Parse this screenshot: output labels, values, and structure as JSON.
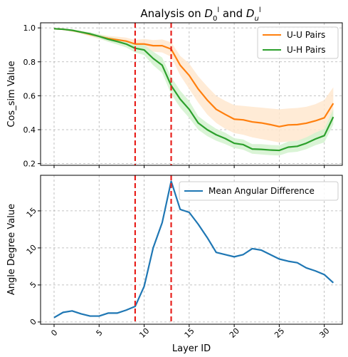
{
  "colors": {
    "uu": "#ff7f0e",
    "uh": "#2ca02c",
    "mad": "#1f77b4",
    "vline": "#e8211d",
    "uu_band": "#ffe7cf",
    "uh_band": "#d4f2cf"
  },
  "chart_data": [
    {
      "type": "line",
      "title_prefix": "Analysis on ",
      "title_mid": " and ",
      "ylabel": "Cos_sim Value",
      "xlabel": "",
      "xlim": [
        -1.5,
        32
      ],
      "ylim": [
        0.19,
        1.03
      ],
      "yticks": [
        0.2,
        0.4,
        0.6,
        0.8,
        1.0
      ],
      "ytick_labels": [
        "0.2",
        "0.4",
        "0.6",
        "0.8",
        "1.0"
      ],
      "xticks": [
        0,
        5,
        10,
        15,
        20,
        25,
        30
      ],
      "grid": true,
      "legend_position": "top-right",
      "vlines": [
        9,
        13
      ],
      "x": [
        0,
        1,
        2,
        3,
        4,
        5,
        6,
        7,
        8,
        9,
        10,
        11,
        12,
        13,
        14,
        15,
        16,
        17,
        18,
        19,
        20,
        21,
        22,
        23,
        24,
        25,
        26,
        27,
        28,
        29,
        30,
        31
      ],
      "series": [
        {
          "name": "U-U Pairs",
          "values": [
            0.995,
            0.992,
            0.985,
            0.975,
            0.962,
            0.95,
            0.938,
            0.93,
            0.922,
            0.905,
            0.905,
            0.895,
            0.895,
            0.875,
            0.78,
            0.72,
            0.64,
            0.575,
            0.52,
            0.49,
            0.462,
            0.458,
            0.446,
            0.44,
            0.43,
            0.418,
            0.428,
            0.43,
            0.438,
            0.452,
            0.47,
            0.555
          ],
          "lower": [
            0.992,
            0.988,
            0.978,
            0.965,
            0.95,
            0.935,
            0.92,
            0.91,
            0.9,
            0.88,
            0.87,
            0.86,
            0.855,
            0.83,
            0.72,
            0.64,
            0.56,
            0.49,
            0.44,
            0.405,
            0.38,
            0.37,
            0.355,
            0.345,
            0.335,
            0.325,
            0.33,
            0.335,
            0.34,
            0.35,
            0.365,
            0.45
          ],
          "upper": [
            0.998,
            0.995,
            0.99,
            0.983,
            0.973,
            0.963,
            0.953,
            0.948,
            0.943,
            0.928,
            0.935,
            0.928,
            0.932,
            0.915,
            0.835,
            0.79,
            0.715,
            0.655,
            0.6,
            0.57,
            0.545,
            0.54,
            0.535,
            0.53,
            0.525,
            0.52,
            0.525,
            0.528,
            0.535,
            0.55,
            0.575,
            0.65
          ]
        },
        {
          "name": "U-H Pairs",
          "values": [
            0.995,
            0.992,
            0.986,
            0.975,
            0.965,
            0.95,
            0.933,
            0.92,
            0.905,
            0.88,
            0.87,
            0.82,
            0.78,
            0.66,
            0.58,
            0.52,
            0.44,
            0.4,
            0.37,
            0.348,
            0.32,
            0.312,
            0.286,
            0.284,
            0.28,
            0.278,
            0.297,
            0.302,
            0.32,
            0.345,
            0.365,
            0.475
          ],
          "lower": [
            0.992,
            0.988,
            0.98,
            0.968,
            0.955,
            0.938,
            0.918,
            0.902,
            0.885,
            0.855,
            0.84,
            0.78,
            0.735,
            0.61,
            0.53,
            0.47,
            0.4,
            0.362,
            0.335,
            0.315,
            0.292,
            0.282,
            0.258,
            0.254,
            0.25,
            0.248,
            0.265,
            0.27,
            0.285,
            0.308,
            0.325,
            0.43
          ],
          "upper": [
            0.998,
            0.995,
            0.991,
            0.982,
            0.974,
            0.962,
            0.948,
            0.938,
            0.925,
            0.905,
            0.9,
            0.86,
            0.825,
            0.71,
            0.63,
            0.57,
            0.48,
            0.44,
            0.405,
            0.382,
            0.35,
            0.342,
            0.315,
            0.315,
            0.31,
            0.308,
            0.33,
            0.335,
            0.355,
            0.382,
            0.405,
            0.52
          ]
        }
      ]
    },
    {
      "type": "line",
      "ylabel": "Angle Degree Value",
      "xlabel": "Layer ID",
      "xlim": [
        -1.5,
        32
      ],
      "ylim": [
        -0.3,
        19.8
      ],
      "yticks": [
        0,
        5,
        10,
        15
      ],
      "ytick_labels": [
        "0",
        "5",
        "10",
        "15"
      ],
      "xticks": [
        0,
        5,
        10,
        15,
        20,
        25,
        30
      ],
      "xtick_labels": [
        "0",
        "5",
        "10",
        "15",
        "20",
        "25",
        "30"
      ],
      "grid": true,
      "legend_position": "top-right",
      "vlines": [
        9,
        13
      ],
      "x": [
        0,
        1,
        2,
        3,
        4,
        5,
        6,
        7,
        8,
        9,
        10,
        11,
        12,
        13,
        14,
        15,
        16,
        17,
        18,
        19,
        20,
        21,
        22,
        23,
        24,
        25,
        26,
        27,
        28,
        29,
        30,
        31
      ],
      "series": [
        {
          "name": "Mean Angular Difference",
          "values": [
            0.6,
            1.3,
            1.5,
            1.1,
            0.8,
            0.8,
            1.2,
            1.2,
            1.6,
            2.1,
            4.8,
            10.0,
            13.4,
            19.0,
            15.2,
            14.8,
            13.2,
            11.4,
            9.4,
            9.1,
            8.8,
            9.1,
            9.9,
            9.7,
            9.1,
            8.5,
            8.2,
            8.0,
            7.3,
            6.9,
            6.4,
            5.3
          ]
        }
      ]
    }
  ]
}
